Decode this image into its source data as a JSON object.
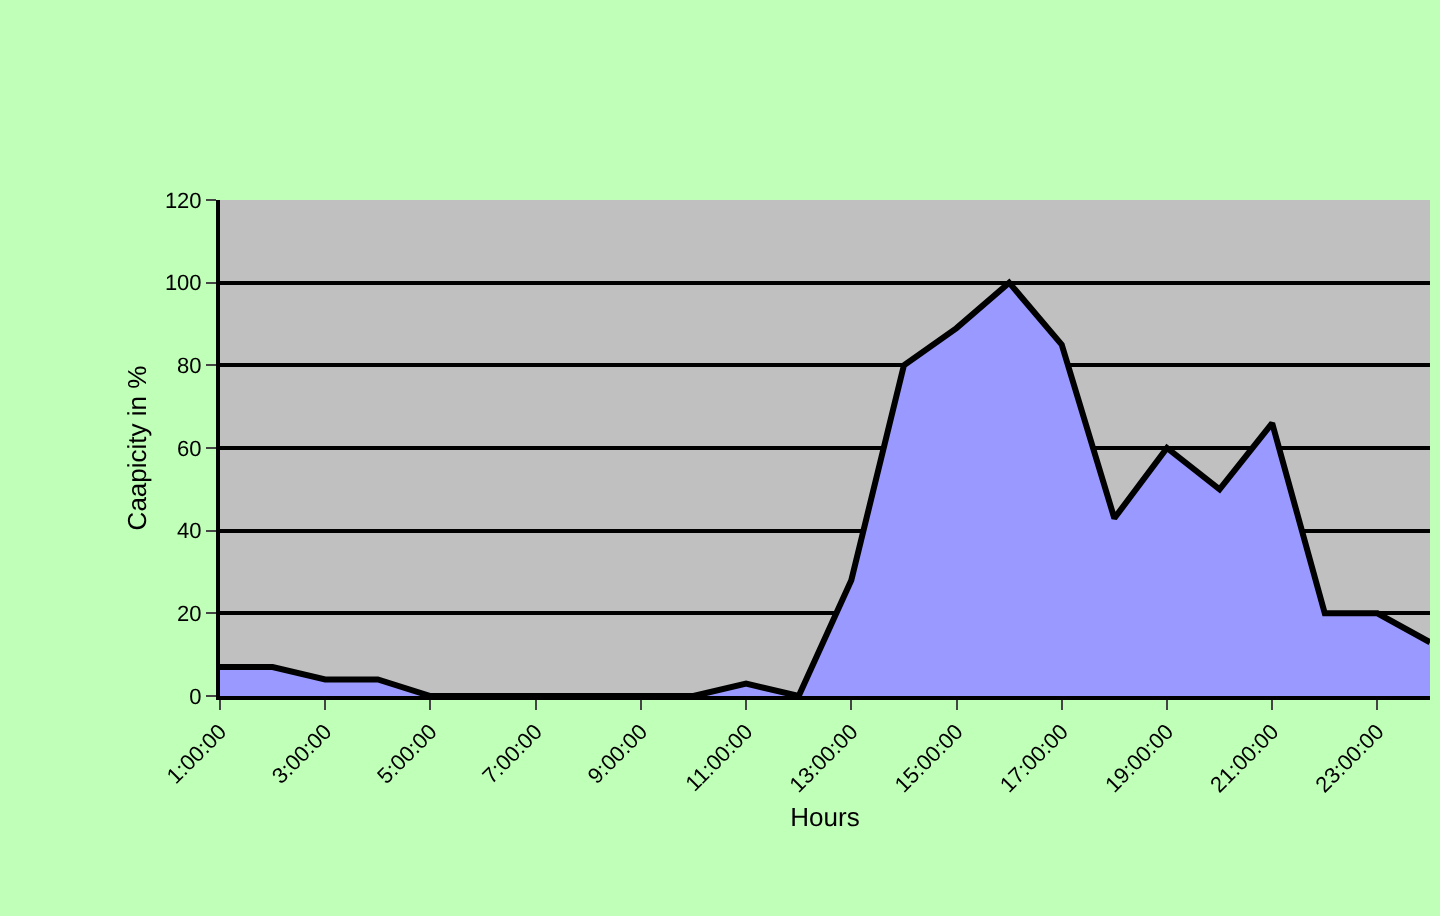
{
  "chart_data": {
    "type": "area",
    "xlabel": "Hours",
    "ylabel": "Caapicity in %",
    "categories": [
      "1:00:00",
      null,
      "3:00:00",
      null,
      "5:00:00",
      null,
      "7:00:00",
      null,
      "9:00:00",
      null,
      "11:00:00",
      null,
      "13:00:00",
      null,
      "15:00:00",
      null,
      "17:00:00",
      null,
      "19:00:00",
      null,
      "21:00:00",
      null,
      "23:00:00",
      null
    ],
    "series": [
      {
        "color": "#9999ff",
        "values": [
          7,
          7,
          4,
          4,
          0,
          0,
          0,
          0,
          0,
          0,
          3,
          0,
          28,
          80,
          89,
          100,
          85,
          43,
          60,
          50,
          66,
          20,
          20,
          13
        ]
      }
    ],
    "ylim": [
      0,
      120
    ],
    "yticks": [
      0,
      20,
      40,
      60,
      80,
      100,
      120
    ],
    "grid": "y"
  }
}
